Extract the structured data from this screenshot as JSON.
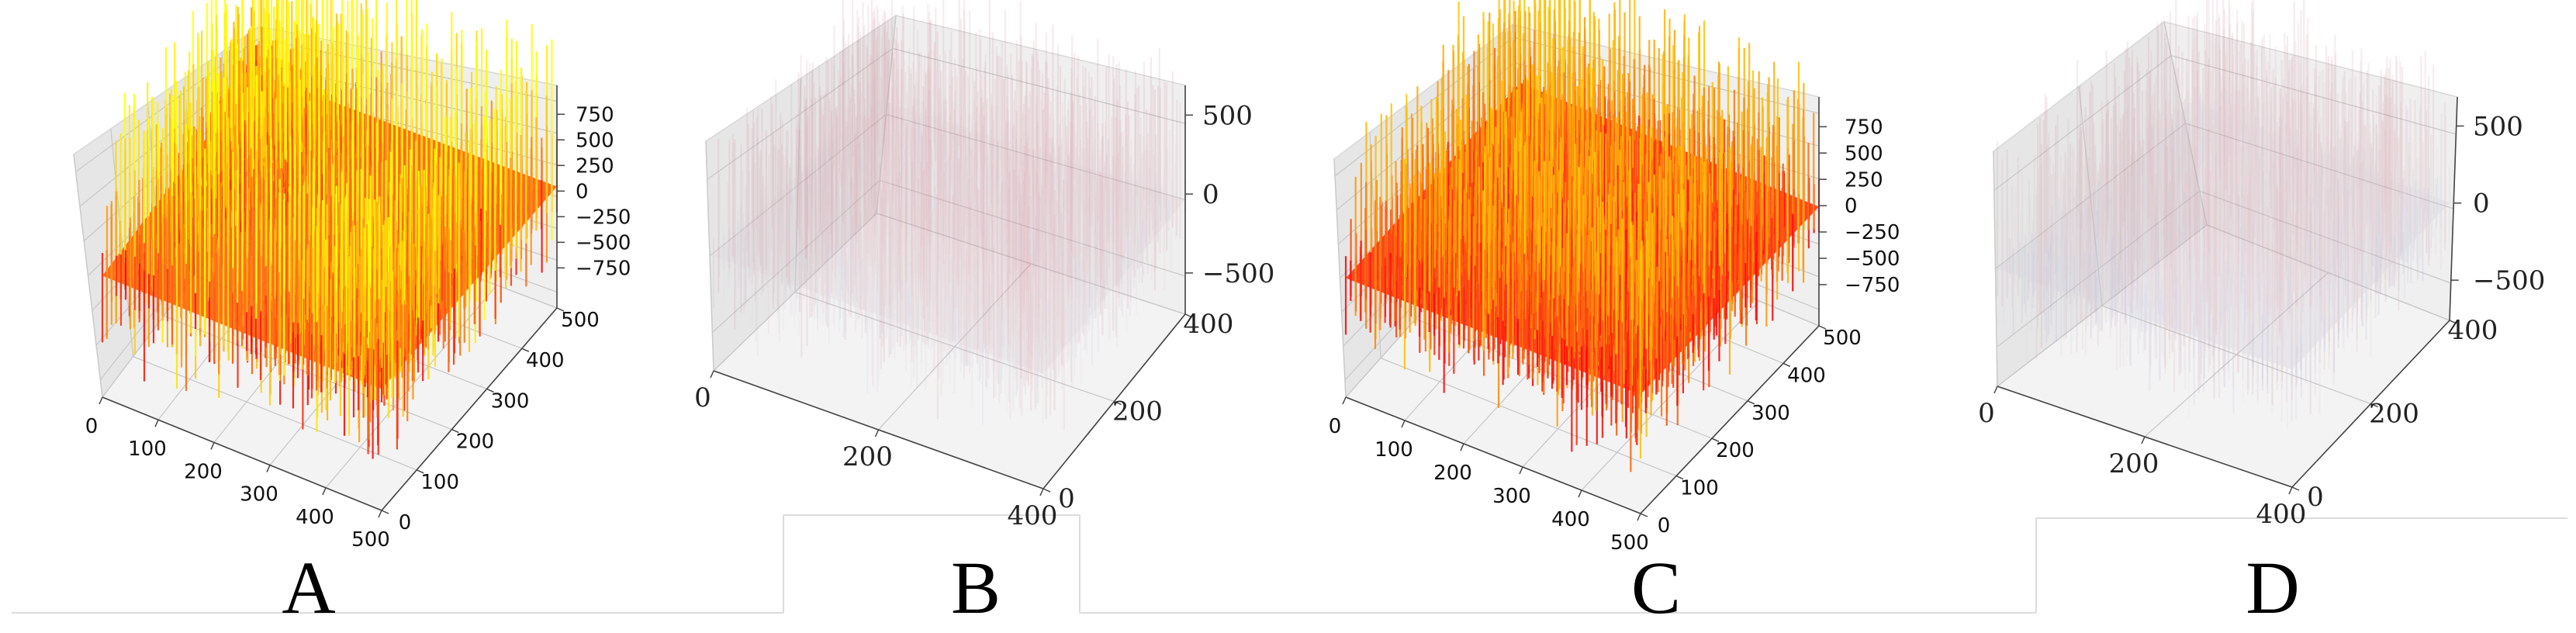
{
  "chart_data": [
    {
      "type": "surface3d",
      "panel": "A",
      "colormap": "autumn",
      "x_ticks": [
        "0",
        "100",
        "200",
        "300",
        "400",
        "500"
      ],
      "y_ticks": [
        "0",
        "100",
        "200",
        "300",
        "400",
        "500"
      ],
      "z_ticks": [
        "750",
        "500",
        "250",
        "0",
        "−250",
        "−500",
        "−750"
      ],
      "zlim": [
        -900,
        900
      ],
      "grid": true
    },
    {
      "type": "surface3d",
      "panel": "B",
      "colormap": "coolwarm",
      "x_ticks": [
        "0",
        "200",
        "400"
      ],
      "y_ticks": [
        "0",
        "200",
        "400"
      ],
      "z_ticks": [
        "500",
        "0",
        "−500"
      ],
      "zlim": [
        -900,
        900
      ],
      "grid": true
    },
    {
      "type": "surface3d",
      "panel": "C",
      "colormap": "autumn",
      "x_ticks": [
        "0",
        "100",
        "200",
        "300",
        "400",
        "500"
      ],
      "y_ticks": [
        "0",
        "100",
        "200",
        "300",
        "400",
        "500"
      ],
      "z_ticks": [
        "750",
        "500",
        "250",
        "0",
        "−250",
        "−500",
        "−750"
      ],
      "zlim": [
        -900,
        900
      ],
      "grid": true
    },
    {
      "type": "surface3d",
      "panel": "D",
      "colormap": "coolwarm",
      "x_ticks": [
        "0",
        "200",
        "400"
      ],
      "y_ticks": [
        "0",
        "200",
        "400"
      ],
      "z_ticks": [
        "500",
        "0",
        "−500"
      ],
      "zlim": [
        -900,
        900
      ],
      "grid": true
    }
  ],
  "labels": {
    "a": "A",
    "b": "B",
    "c": "C",
    "d": "D"
  },
  "colors": {
    "pane": "#efefef",
    "pane_side": "#e6e6e6",
    "grid": "#c9c9c9",
    "autumn_low": "#ff0000",
    "autumn_high": "#ffff00",
    "coolwarm_low": "#3b4cc0",
    "coolwarm_mid": "#dddddd",
    "coolwarm_high": "#b40426"
  }
}
